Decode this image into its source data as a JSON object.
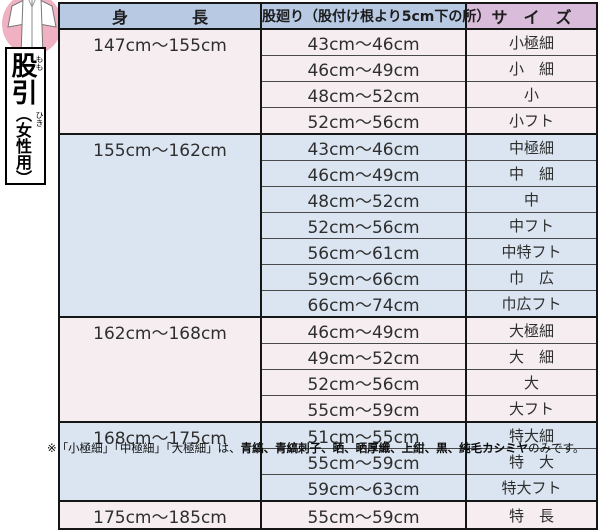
{
  "sidebar": {
    "product_title": "股引",
    "furigana_top": "もも",
    "furigana_bottom": "ひき",
    "audience": "（女性用）",
    "badge_icon": "white-momohiki-garment"
  },
  "table": {
    "headers": {
      "height": "身　　　　長",
      "circumference": "股廻り（股付け根より5cm下の所）",
      "size": "サ　イ　ズ"
    },
    "groups": [
      {
        "height": "147cm～155cm",
        "rows": [
          {
            "circumference": "43cm～46cm",
            "size": "小極細"
          },
          {
            "circumference": "46cm～49cm",
            "size": "小　細"
          },
          {
            "circumference": "48cm～52cm",
            "size": "小"
          },
          {
            "circumference": "52cm～56cm",
            "size": "小フト"
          }
        ]
      },
      {
        "height": "155cm～162cm",
        "rows": [
          {
            "circumference": "43cm～46cm",
            "size": "中極細"
          },
          {
            "circumference": "46cm～49cm",
            "size": "中　細"
          },
          {
            "circumference": "48cm～52cm",
            "size": "中"
          },
          {
            "circumference": "52cm～56cm",
            "size": "中フト"
          },
          {
            "circumference": "56cm～61cm",
            "size": "中特フト"
          },
          {
            "circumference": "59cm～66cm",
            "size": "巾　広"
          },
          {
            "circumference": "66cm～74cm",
            "size": "巾広フト"
          }
        ]
      },
      {
        "height": "162cm～168cm",
        "rows": [
          {
            "circumference": "46cm～49cm",
            "size": "大極細"
          },
          {
            "circumference": "49cm～52cm",
            "size": "大　細"
          },
          {
            "circumference": "52cm～56cm",
            "size": "大"
          },
          {
            "circumference": "55cm～59cm",
            "size": "大フト"
          }
        ]
      },
      {
        "height": "168cm～175cm",
        "rows": [
          {
            "circumference": "51cm～55cm",
            "size": "特大細"
          },
          {
            "circumference": "55cm～59cm",
            "size": "特　大"
          },
          {
            "circumference": "59cm～63cm",
            "size": "特大フト"
          }
        ]
      },
      {
        "height": "175cm～185cm",
        "rows": [
          {
            "circumference": "55cm～59cm",
            "size": "特　長"
          }
        ]
      }
    ]
  },
  "footnote": {
    "prefix": "※「小極細」「中極細」「大極細」は、",
    "bold": "青縞、青縞刺子、晒、晒厚織、上紺、黒、純毛カシミヤ",
    "suffix": "のみです。"
  },
  "colors": {
    "header_blue": "#b7c9e3",
    "header_mauve": "#d9bcd9",
    "group_pink": "#f5edf0",
    "group_blue": "#dbe5f1",
    "badge_pink": "#f0b2c3",
    "border": "#161616",
    "text": "#2e2e2e"
  }
}
